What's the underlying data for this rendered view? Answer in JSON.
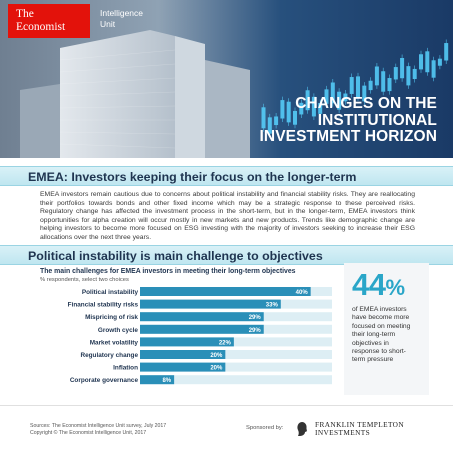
{
  "brand": {
    "logo_line1": "The",
    "logo_line2": "Economist",
    "unit_line1": "Intelligence",
    "unit_line2": "Unit",
    "logo_color": "#e3120b"
  },
  "hero": {
    "title_line1": "Changes on the",
    "title_line2": "institutional",
    "title_line3": "investment horizon"
  },
  "section1": {
    "heading": "EMEA: Investors keeping their focus on the longer-term",
    "body": "EMEA investors remain cautious due to concerns about political instability and financial stability risks. They are reallocating their portfolios towards bonds and other fixed income which may be a strategic response to these perceived risks. Regulatory change has affected the investment process in the short-term, but in the longer-term, EMEA investors think opportunities for alpha creation will occur mostly in new markets and new products. Trends like demographic change are helping investors to become more focused on ESG investing with the majority of investors seeking to increase their ESG allocations over the next three years."
  },
  "section2": {
    "heading": "Political instability is main challenge to objectives"
  },
  "chart_data": {
    "type": "bar",
    "orientation": "horizontal",
    "title": "The main challenges for EMEA investors in meeting their long-term objectives",
    "subtitle": "% respondents, select two choices",
    "categories": [
      "Political instability",
      "Financial stability risks",
      "Mispricing of risk",
      "Growth cycle",
      "Market volatility",
      "Regulatory change",
      "Inflation",
      "Corporate governance"
    ],
    "values": [
      40,
      33,
      29,
      29,
      22,
      20,
      20,
      8
    ],
    "value_labels": [
      "40%",
      "33%",
      "29%",
      "29%",
      "22%",
      "20%",
      "20%",
      "8%"
    ],
    "xlim": [
      0,
      45
    ],
    "bar_color": "#2a8fb8",
    "track_color": "#ddeef4",
    "grid": false,
    "legend": "none"
  },
  "callout": {
    "number": "44",
    "unit": "%",
    "text": "of EMEA investors have become more focused on meeting their long-term objectives in response to short-term pressure",
    "color": "#2aa6c8"
  },
  "footer": {
    "sources": "Sources: The Economist Intelligence Unit survey, July 2017",
    "copyright": "Copyright © The Economist Intelligence Unit, 2017",
    "sponsor_label": "Sponsored by:",
    "sponsor_line1": "FRANKLIN TEMPLETON",
    "sponsor_line2": "INVESTMENTS",
    "sponsor_icon": "franklin-profile-icon"
  }
}
